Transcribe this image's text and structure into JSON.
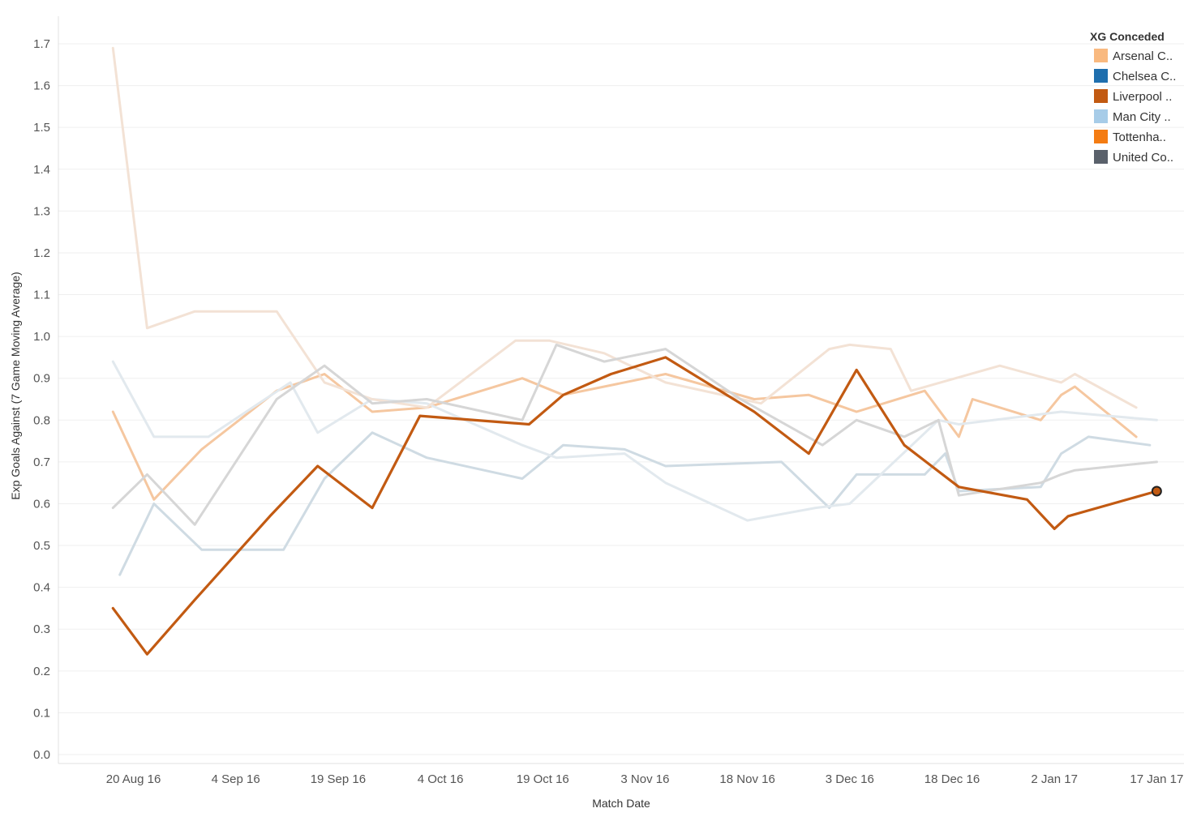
{
  "chart_data": {
    "type": "line",
    "xlabel": "Match Date",
    "ylabel": "Exp Goals Against (7 Game Moving Average)",
    "ylim": [
      0.0,
      1.7
    ],
    "y_ticks": [
      "0.0",
      "0.1",
      "0.2",
      "0.3",
      "0.4",
      "0.5",
      "0.6",
      "0.7",
      "0.8",
      "0.9",
      "1.0",
      "1.1",
      "1.2",
      "1.3",
      "1.4",
      "1.5",
      "1.6",
      "1.7"
    ],
    "x_range": [
      "2016-08-09",
      "2017-01-21"
    ],
    "x_ticks": [
      {
        "date": "2016-08-20",
        "label": "20 Aug 16"
      },
      {
        "date": "2016-09-04",
        "label": "4 Sep 16"
      },
      {
        "date": "2016-09-19",
        "label": "19 Sep 16"
      },
      {
        "date": "2016-10-04",
        "label": "4 Oct 16"
      },
      {
        "date": "2016-10-19",
        "label": "19 Oct 16"
      },
      {
        "date": "2016-11-03",
        "label": "3 Nov 16"
      },
      {
        "date": "2016-11-18",
        "label": "18 Nov 16"
      },
      {
        "date": "2016-12-03",
        "label": "3 Dec 16"
      },
      {
        "date": "2016-12-18",
        "label": "18 Dec 16"
      },
      {
        "date": "2017-01-02",
        "label": "2 Jan 17"
      },
      {
        "date": "2017-01-17",
        "label": "17 Jan 17"
      }
    ],
    "legend": {
      "title": "XG Conceded",
      "position": "top-right"
    },
    "highlight_series": "Liverpool ..",
    "series": [
      {
        "name": "Arsenal C..",
        "color": "#f5c7a0",
        "points": [
          [
            "2016-08-17",
            0.82
          ],
          [
            "2016-08-23",
            0.61
          ],
          [
            "2016-08-30",
            0.73
          ],
          [
            "2016-09-10",
            0.87
          ],
          [
            "2016-09-17",
            0.91
          ],
          [
            "2016-09-24",
            0.82
          ],
          [
            "2016-10-02",
            0.83
          ],
          [
            "2016-10-16",
            0.9
          ],
          [
            "2016-10-22",
            0.86
          ],
          [
            "2016-11-06",
            0.91
          ],
          [
            "2016-11-19",
            0.85
          ],
          [
            "2016-11-27",
            0.86
          ],
          [
            "2016-12-04",
            0.82
          ],
          [
            "2016-12-14",
            0.87
          ],
          [
            "2016-12-19",
            0.76
          ],
          [
            "2016-12-21",
            0.85
          ],
          [
            "2016-12-31",
            0.8
          ],
          [
            "2017-01-03",
            0.86
          ],
          [
            "2017-01-05",
            0.88
          ],
          [
            "2017-01-14",
            0.76
          ]
        ]
      },
      {
        "name": "Chelsea C..",
        "color": "#cfdbe3",
        "points": [
          [
            "2016-08-18",
            0.43
          ],
          [
            "2016-08-23",
            0.6
          ],
          [
            "2016-08-30",
            0.49
          ],
          [
            "2016-09-11",
            0.49
          ],
          [
            "2016-09-17",
            0.66
          ],
          [
            "2016-09-24",
            0.77
          ],
          [
            "2016-10-02",
            0.71
          ],
          [
            "2016-10-16",
            0.66
          ],
          [
            "2016-10-22",
            0.74
          ],
          [
            "2016-10-31",
            0.73
          ],
          [
            "2016-11-06",
            0.69
          ],
          [
            "2016-11-23",
            0.7
          ],
          [
            "2016-11-30",
            0.59
          ],
          [
            "2016-12-04",
            0.67
          ],
          [
            "2016-12-14",
            0.67
          ],
          [
            "2016-12-17",
            0.72
          ],
          [
            "2016-12-19",
            0.63
          ],
          [
            "2016-12-31",
            0.64
          ],
          [
            "2017-01-03",
            0.72
          ],
          [
            "2017-01-07",
            0.76
          ],
          [
            "2017-01-16",
            0.74
          ]
        ]
      },
      {
        "name": "Liverpool ..",
        "color": "#c25a12",
        "points": [
          [
            "2016-08-17",
            0.35
          ],
          [
            "2016-08-22",
            0.24
          ],
          [
            "2016-08-29",
            0.37
          ],
          [
            "2016-09-09",
            0.57
          ],
          [
            "2016-09-16",
            0.69
          ],
          [
            "2016-09-24",
            0.59
          ],
          [
            "2016-10-01",
            0.81
          ],
          [
            "2016-10-17",
            0.79
          ],
          [
            "2016-10-22",
            0.86
          ],
          [
            "2016-10-29",
            0.91
          ],
          [
            "2016-11-06",
            0.95
          ],
          [
            "2016-11-19",
            0.82
          ],
          [
            "2016-11-27",
            0.72
          ],
          [
            "2016-12-04",
            0.92
          ],
          [
            "2016-12-11",
            0.74
          ],
          [
            "2016-12-19",
            0.64
          ],
          [
            "2016-12-29",
            0.61
          ],
          [
            "2017-01-02",
            0.54
          ],
          [
            "2017-01-04",
            0.57
          ],
          [
            "2017-01-17",
            0.63
          ]
        ]
      },
      {
        "name": "Man City ..",
        "color": "#e2e9ee",
        "points": [
          [
            "2016-08-17",
            0.94
          ],
          [
            "2016-08-23",
            0.76
          ],
          [
            "2016-08-31",
            0.76
          ],
          [
            "2016-09-12",
            0.89
          ],
          [
            "2016-09-16",
            0.77
          ],
          [
            "2016-09-24",
            0.85
          ],
          [
            "2016-10-02",
            0.84
          ],
          [
            "2016-10-16",
            0.74
          ],
          [
            "2016-10-21",
            0.71
          ],
          [
            "2016-10-31",
            0.72
          ],
          [
            "2016-11-06",
            0.65
          ],
          [
            "2016-11-18",
            0.56
          ],
          [
            "2016-11-28",
            0.59
          ],
          [
            "2016-12-03",
            0.6
          ],
          [
            "2016-12-16",
            0.8
          ],
          [
            "2016-12-19",
            0.79
          ],
          [
            "2017-01-03",
            0.82
          ],
          [
            "2017-01-17",
            0.8
          ]
        ]
      },
      {
        "name": "Tottenha..",
        "color": "#f3e2d5",
        "points": [
          [
            "2016-08-17",
            1.69
          ],
          [
            "2016-08-22",
            1.02
          ],
          [
            "2016-08-29",
            1.06
          ],
          [
            "2016-09-10",
            1.06
          ],
          [
            "2016-09-17",
            0.89
          ],
          [
            "2016-09-24",
            0.85
          ],
          [
            "2016-10-02",
            0.83
          ],
          [
            "2016-10-15",
            0.99
          ],
          [
            "2016-10-20",
            0.99
          ],
          [
            "2016-10-28",
            0.96
          ],
          [
            "2016-11-06",
            0.89
          ],
          [
            "2016-11-20",
            0.84
          ],
          [
            "2016-11-30",
            0.97
          ],
          [
            "2016-12-03",
            0.98
          ],
          [
            "2016-12-09",
            0.97
          ],
          [
            "2016-12-12",
            0.87
          ],
          [
            "2016-12-25",
            0.93
          ],
          [
            "2017-01-03",
            0.89
          ],
          [
            "2017-01-05",
            0.91
          ],
          [
            "2017-01-14",
            0.83
          ]
        ]
      },
      {
        "name": "United Co..",
        "color": "#d6d6d6",
        "points": [
          [
            "2016-08-17",
            0.59
          ],
          [
            "2016-08-22",
            0.67
          ],
          [
            "2016-08-29",
            0.55
          ],
          [
            "2016-09-10",
            0.85
          ],
          [
            "2016-09-17",
            0.93
          ],
          [
            "2016-09-24",
            0.84
          ],
          [
            "2016-10-02",
            0.85
          ],
          [
            "2016-10-16",
            0.8
          ],
          [
            "2016-10-21",
            0.98
          ],
          [
            "2016-10-28",
            0.94
          ],
          [
            "2016-11-06",
            0.97
          ],
          [
            "2016-11-17",
            0.85
          ],
          [
            "2016-11-29",
            0.74
          ],
          [
            "2016-12-04",
            0.8
          ],
          [
            "2016-12-11",
            0.76
          ],
          [
            "2016-12-16",
            0.8
          ],
          [
            "2016-12-19",
            0.62
          ],
          [
            "2016-12-31",
            0.65
          ],
          [
            "2017-01-03",
            0.67
          ],
          [
            "2017-01-05",
            0.68
          ],
          [
            "2017-01-17",
            0.7
          ]
        ]
      }
    ]
  },
  "legend_items": [
    {
      "label": "Arsenal C..",
      "color": "#f9b97f"
    },
    {
      "label": "Chelsea C..",
      "color": "#1f6fae"
    },
    {
      "label": "Liverpool ..",
      "color": "#c25a12"
    },
    {
      "label": "Man City ..",
      "color": "#a7cce8"
    },
    {
      "label": "Tottenha..",
      "color": "#f47c13"
    },
    {
      "label": "United Co..",
      "color": "#5a616b"
    }
  ]
}
